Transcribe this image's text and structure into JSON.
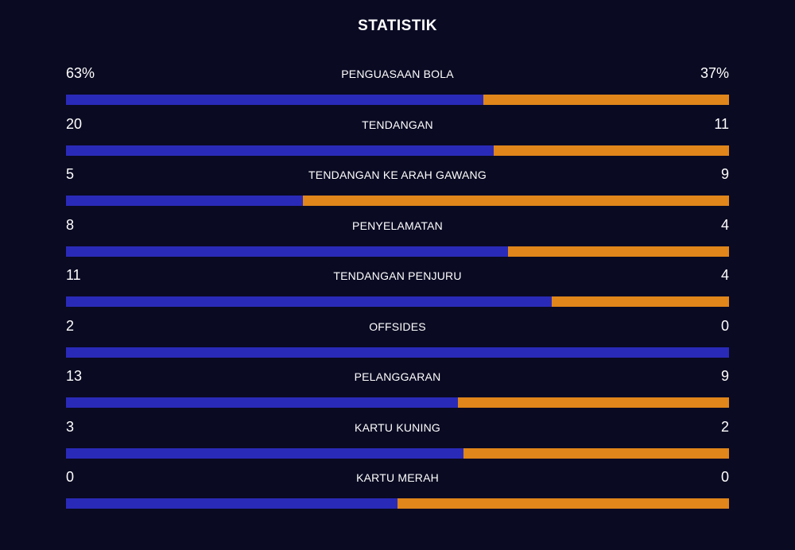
{
  "title": "STATISTIK",
  "colors": {
    "background": "#0a0a23",
    "home": "#2a2ab8",
    "away": "#e0861a"
  },
  "stats": [
    {
      "label": "PENGUASAAN BOLA",
      "home_display": "63%",
      "away_display": "37%",
      "home_share": 0.63
    },
    {
      "label": "TENDANGAN",
      "home_display": "20",
      "away_display": "11",
      "home_share": 0.645
    },
    {
      "label": "TENDANGAN KE ARAH GAWANG",
      "home_display": "5",
      "away_display": "9",
      "home_share": 0.357
    },
    {
      "label": "PENYELAMATAN",
      "home_display": "8",
      "away_display": "4",
      "home_share": 0.667
    },
    {
      "label": "TENDANGAN PENJURU",
      "home_display": "11",
      "away_display": "4",
      "home_share": 0.733
    },
    {
      "label": "OFFSIDES",
      "home_display": "2",
      "away_display": "0",
      "home_share": 1.0
    },
    {
      "label": "PELANGGARAN",
      "home_display": "13",
      "away_display": "9",
      "home_share": 0.591
    },
    {
      "label": "KARTU KUNING",
      "home_display": "3",
      "away_display": "2",
      "home_share": 0.6
    },
    {
      "label": "KARTU MERAH",
      "home_display": "0",
      "away_display": "0",
      "home_share": 0.5
    }
  ]
}
